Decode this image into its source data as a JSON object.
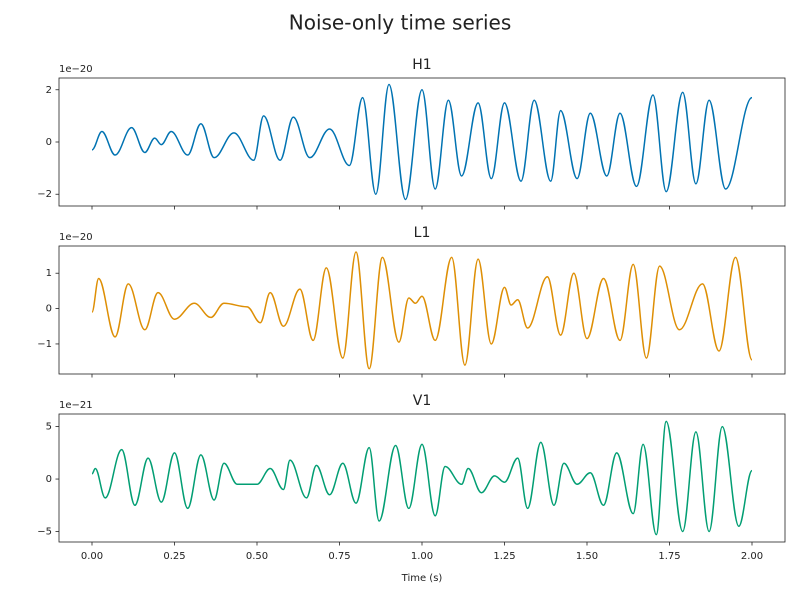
{
  "title": "Noise-only time series",
  "chart_data": [
    {
      "type": "line",
      "title": "H1",
      "color": "#0173b2",
      "y_offset_text": "1e−20",
      "xlim": [
        -0.1,
        2.1
      ],
      "ylim": [
        -2.45,
        2.45
      ],
      "xticks": [
        0,
        0.25,
        0.5,
        0.75,
        1,
        1.25,
        1.5,
        1.75,
        2
      ],
      "yticks": [
        {
          "value": -2,
          "label": "−2"
        },
        0,
        2
      ],
      "x": [
        0,
        0.03,
        0.07,
        0.12,
        0.16,
        0.19,
        0.21,
        0.24,
        0.29,
        0.33,
        0.37,
        0.43,
        0.49,
        0.52,
        0.57,
        0.61,
        0.66,
        0.72,
        0.78,
        0.82,
        0.86,
        0.9,
        0.95,
        1.0,
        1.04,
        1.08,
        1.12,
        1.17,
        1.21,
        1.25,
        1.3,
        1.34,
        1.39,
        1.42,
        1.47,
        1.51,
        1.56,
        1.6,
        1.65,
        1.7,
        1.74,
        1.79,
        1.83,
        1.87,
        1.92,
        2.0
      ],
      "values": [
        -0.3,
        0.4,
        -0.5,
        0.55,
        -0.4,
        0.15,
        -0.1,
        0.4,
        -0.5,
        0.7,
        -0.6,
        0.35,
        -0.7,
        1.0,
        -0.7,
        0.95,
        -0.6,
        0.5,
        -0.9,
        1.7,
        -2.0,
        2.2,
        -2.2,
        2.0,
        -1.8,
        1.6,
        -1.3,
        1.5,
        -1.4,
        1.5,
        -1.5,
        1.6,
        -1.5,
        1.2,
        -1.4,
        1.1,
        -1.3,
        1.1,
        -1.7,
        1.8,
        -1.9,
        1.9,
        -1.6,
        1.6,
        -1.8,
        1.7
      ]
    },
    {
      "type": "line",
      "title": "L1",
      "color": "#de8f05",
      "y_offset_text": "1e−20",
      "xlim": [
        -0.1,
        2.1
      ],
      "ylim": [
        -1.85,
        1.77
      ],
      "xticks": [
        0,
        0.25,
        0.5,
        0.75,
        1,
        1.25,
        1.5,
        1.75,
        2
      ],
      "yticks": [
        {
          "value": -1,
          "label": "−1"
        },
        0,
        1
      ],
      "x": [
        0,
        0.02,
        0.07,
        0.11,
        0.16,
        0.2,
        0.25,
        0.31,
        0.36,
        0.4,
        0.47,
        0.51,
        0.54,
        0.58,
        0.63,
        0.67,
        0.71,
        0.76,
        0.8,
        0.84,
        0.88,
        0.93,
        0.96,
        0.98,
        1.0,
        1.04,
        1.09,
        1.13,
        1.17,
        1.21,
        1.25,
        1.27,
        1.29,
        1.32,
        1.38,
        1.42,
        1.46,
        1.5,
        1.55,
        1.6,
        1.64,
        1.68,
        1.72,
        1.78,
        1.85,
        1.9,
        1.95,
        2.0
      ],
      "values": [
        -0.1,
        0.85,
        -0.8,
        0.7,
        -0.6,
        0.45,
        -0.3,
        0.15,
        -0.25,
        0.15,
        0.05,
        -0.4,
        0.45,
        -0.5,
        0.55,
        -0.9,
        1.15,
        -1.4,
        1.6,
        -1.7,
        1.45,
        -0.95,
        0.3,
        0.15,
        0.35,
        -0.9,
        1.45,
        -1.6,
        1.4,
        -1.0,
        0.6,
        0.1,
        0.25,
        -0.55,
        0.9,
        -0.75,
        1.0,
        -0.85,
        0.85,
        -0.9,
        1.25,
        -1.4,
        1.2,
        -0.6,
        0.7,
        -1.2,
        1.45,
        -1.45
      ]
    },
    {
      "type": "line",
      "title": "V1",
      "color": "#029e73",
      "y_offset_text": "1e−21",
      "xlabel": "Time (s)",
      "xlim": [
        -0.1,
        2.1
      ],
      "ylim": [
        -6.0,
        6.2
      ],
      "xticks": [
        {
          "value": 0,
          "label": "0.00"
        },
        {
          "value": 0.25,
          "label": "0.25"
        },
        {
          "value": 0.5,
          "label": "0.50"
        },
        {
          "value": 0.75,
          "label": "0.75"
        },
        {
          "value": 1,
          "label": "1.00"
        },
        {
          "value": 1.25,
          "label": "1.25"
        },
        {
          "value": 1.5,
          "label": "1.50"
        },
        {
          "value": 1.75,
          "label": "1.75"
        },
        {
          "value": 2,
          "label": "2.00"
        }
      ],
      "yticks": [
        {
          "value": -5,
          "label": "−5"
        },
        0,
        5
      ],
      "x": [
        0,
        0.01,
        0.04,
        0.09,
        0.13,
        0.17,
        0.21,
        0.25,
        0.29,
        0.33,
        0.37,
        0.4,
        0.44,
        0.5,
        0.54,
        0.58,
        0.6,
        0.65,
        0.68,
        0.72,
        0.76,
        0.8,
        0.84,
        0.87,
        0.92,
        0.96,
        1.0,
        1.04,
        1.07,
        1.12,
        1.14,
        1.18,
        1.22,
        1.25,
        1.29,
        1.32,
        1.36,
        1.4,
        1.43,
        1.47,
        1.51,
        1.55,
        1.59,
        1.64,
        1.67,
        1.71,
        1.74,
        1.79,
        1.83,
        1.87,
        1.91,
        1.96,
        2.0
      ],
      "values": [
        0.5,
        1.0,
        -1.8,
        2.8,
        -2.5,
        2.0,
        -2.2,
        2.5,
        -2.8,
        2.3,
        -2.0,
        1.5,
        -0.5,
        -0.5,
        1.0,
        -1.0,
        1.8,
        -1.8,
        1.3,
        -1.5,
        1.5,
        -2.3,
        3.0,
        -4.0,
        3.2,
        -2.8,
        3.3,
        -3.5,
        1.2,
        -0.5,
        1.0,
        -1.3,
        0.3,
        -0.3,
        2.0,
        -2.8,
        3.5,
        -2.5,
        1.5,
        -0.5,
        0.6,
        -2.5,
        2.5,
        -3.3,
        3.3,
        -5.3,
        5.5,
        -5.0,
        4.5,
        -5.0,
        5.0,
        -4.5,
        0.8
      ]
    }
  ]
}
